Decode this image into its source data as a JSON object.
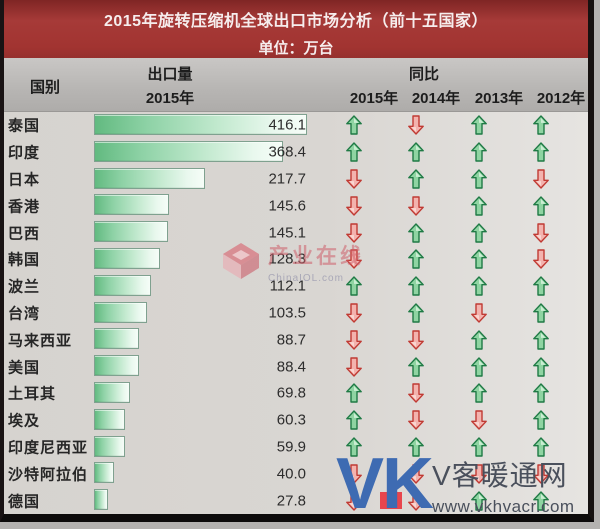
{
  "header": {
    "title": "2015年旋转压缩机全球出口市场分析（前十五国家）",
    "unit_line": "单位：万台"
  },
  "table_head": {
    "country": "国别",
    "export": "出口量",
    "export_year": "2015年",
    "yoy": "同比"
  },
  "chart_data": {
    "type": "bar",
    "title": "2015年旋转压缩机全球出口市场分析（前十五国家）",
    "subtitle": "单位：万台",
    "ylabel": "出口量",
    "unit": "万台",
    "xlim": [
      0,
      416.1
    ],
    "categories": [
      "泰国",
      "印度",
      "日本",
      "香港",
      "巴西",
      "韩国",
      "波兰",
      "台湾",
      "马来西亚",
      "美国",
      "土耳其",
      "埃及",
      "印度尼西亚",
      "沙特阿拉伯",
      "德国"
    ],
    "values": [
      416.1,
      368.4,
      217.7,
      145.6,
      145.1,
      128.3,
      112.1,
      103.5,
      88.7,
      88.4,
      69.8,
      60.3,
      59.9,
      40.0,
      27.8
    ],
    "value_labels": [
      "416.1",
      "368.4",
      "217.7",
      "145.6",
      "145.1",
      "128.3",
      "112.1",
      "103.5",
      "88.7",
      "88.4",
      "69.8",
      "60.3",
      "59.9",
      "40.0",
      "27.8"
    ],
    "yoy_years": [
      "2015年",
      "2014年",
      "2013年",
      "2012年"
    ],
    "yoy_directions": [
      [
        "up",
        "down",
        "up",
        "up"
      ],
      [
        "up",
        "up",
        "up",
        "up"
      ],
      [
        "down",
        "up",
        "up",
        "down"
      ],
      [
        "down",
        "down",
        "up",
        "up"
      ],
      [
        "down",
        "up",
        "up",
        "down"
      ],
      [
        "down",
        "up",
        "up",
        "down"
      ],
      [
        "up",
        "up",
        "up",
        "up"
      ],
      [
        "down",
        "up",
        "down",
        "up"
      ],
      [
        "down",
        "down",
        "up",
        "up"
      ],
      [
        "down",
        "up",
        "up",
        "up"
      ],
      [
        "up",
        "down",
        "up",
        "up"
      ],
      [
        "up",
        "down",
        "down",
        "up"
      ],
      [
        "up",
        "up",
        "up",
        "up"
      ],
      [
        "down",
        "down",
        "down",
        "down"
      ],
      [
        "down",
        "down",
        "up",
        "up"
      ]
    ],
    "legend_position": "none",
    "grid": false
  },
  "watermarks": {
    "center": {
      "text": "产业在线",
      "subtext": "ChinaIOL.com"
    },
    "bottom": {
      "logo_v": "V",
      "logo_k": "K",
      "text": "V客暖通网",
      "subtext": "www.vkhvacr.com"
    }
  },
  "colors": {
    "header_red": "#a23431",
    "header_gray": "#b7b5b3",
    "bar_green_dark": "#62ba80",
    "bar_green_light": "#f6fdf8",
    "arrow_up_fill": "#8fd4a2",
    "arrow_up_stroke": "#1f7a45",
    "arrow_down_fill": "#f3b3ae",
    "arrow_down_stroke": "#c03a33",
    "vk_blue": "#3e6bb2",
    "vk_red": "#e8454d"
  }
}
